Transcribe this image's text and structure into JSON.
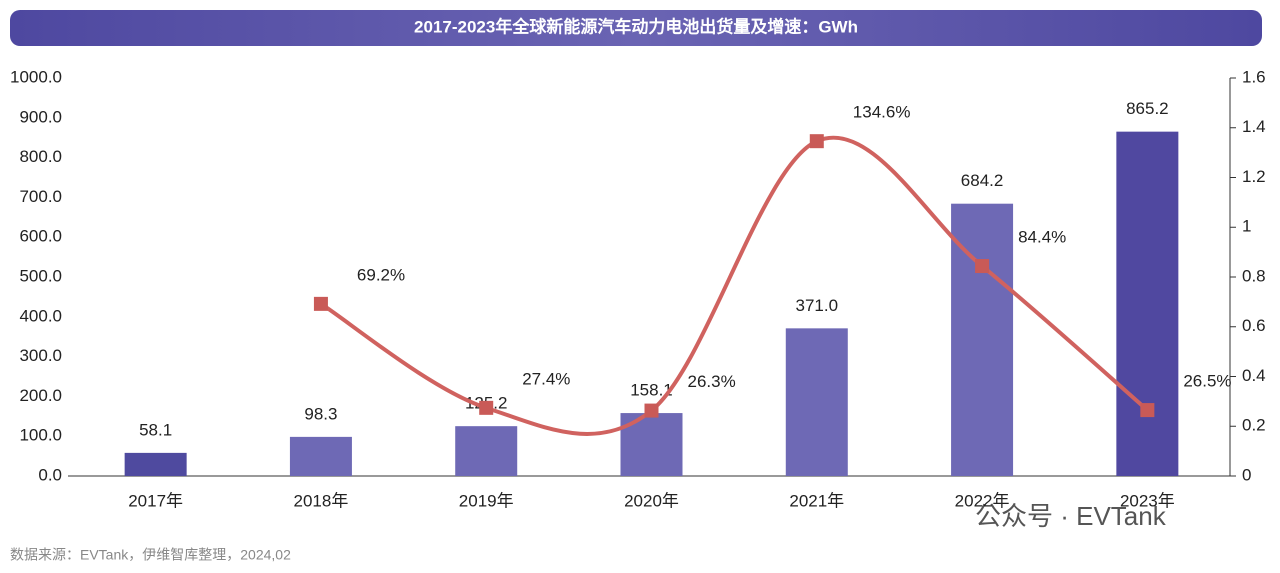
{
  "chart_data": {
    "type": "bar_line",
    "title": "2017-2023年全球新能源汽车动力电池出货量及增速：GWh",
    "categories": [
      "2017年",
      "2018年",
      "2019年",
      "2020年",
      "2021年",
      "2022年",
      "2023年"
    ],
    "series": [
      {
        "name": "出货量",
        "type": "bar",
        "colors": [
          "#4f4a9f",
          "#6e69b5",
          "#6e69b5",
          "#6e69b5",
          "#6e69b5",
          "#6e69b5",
          "#5048a0"
        ],
        "values": [
          58.1,
          98.3,
          125.2,
          158.1,
          371.0,
          684.2,
          865.2
        ],
        "value_labels": [
          "58.1",
          "98.3",
          "125.2",
          "158.1",
          "371.0",
          "684.2",
          "865.2"
        ]
      },
      {
        "name": "增速",
        "type": "line",
        "axis": "y2",
        "color": "#d0625f",
        "marker_color": "#c95a57",
        "values": [
          null,
          0.692,
          0.274,
          0.263,
          1.346,
          0.844,
          0.265
        ],
        "value_labels": [
          null,
          "69.2%",
          "27.4%",
          "26.3%",
          "134.6%",
          "84.4%",
          "26.5%"
        ]
      }
    ],
    "ylim": [
      0,
      1000
    ],
    "yticks": [
      {
        "value": 0,
        "label": "0.0"
      },
      {
        "value": 100,
        "label": "100.0"
      },
      {
        "value": 200,
        "label": "200.0"
      },
      {
        "value": 300,
        "label": "300.0"
      },
      {
        "value": 400,
        "label": "400.0"
      },
      {
        "value": 500,
        "label": "500.0"
      },
      {
        "value": 600,
        "label": "600.0"
      },
      {
        "value": 700,
        "label": "700.0"
      },
      {
        "value": 800,
        "label": "800.0"
      },
      {
        "value": 900,
        "label": "900.0"
      },
      {
        "value": 1000,
        "label": "1000.0"
      }
    ],
    "y2lim": [
      0,
      1.6
    ],
    "y2ticks": [
      0,
      0.2,
      0.4,
      0.6,
      0.8,
      1,
      1.2,
      1.4,
      1.6
    ],
    "source": "数据来源：EVTank，伊维智库整理，2024,02",
    "watermark": "公众号 · EVTank"
  }
}
